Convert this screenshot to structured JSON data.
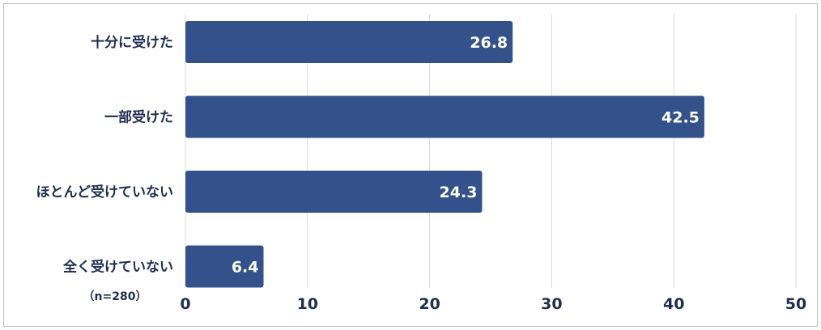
{
  "chart_data": {
    "type": "bar",
    "orientation": "horizontal",
    "categories": [
      "十分に受けた",
      "一部受けた",
      "ほとんど受けていない",
      "全く受けていない"
    ],
    "values": [
      26.8,
      42.5,
      24.3,
      6.4
    ],
    "value_labels": [
      "26.8",
      "42.5",
      "24.3",
      "6.4"
    ],
    "xlim": [
      0,
      50
    ],
    "xticks": [
      0,
      10,
      20,
      30,
      40,
      50
    ],
    "xtick_labels": [
      "0",
      "10",
      "20",
      "30",
      "40",
      "50"
    ],
    "grid": true,
    "note": "（n=280）",
    "colors": {
      "bar": "#33528b",
      "text": "#1f2d4f",
      "grid": "#d9d9d9",
      "border": "#bfbfbf"
    }
  }
}
